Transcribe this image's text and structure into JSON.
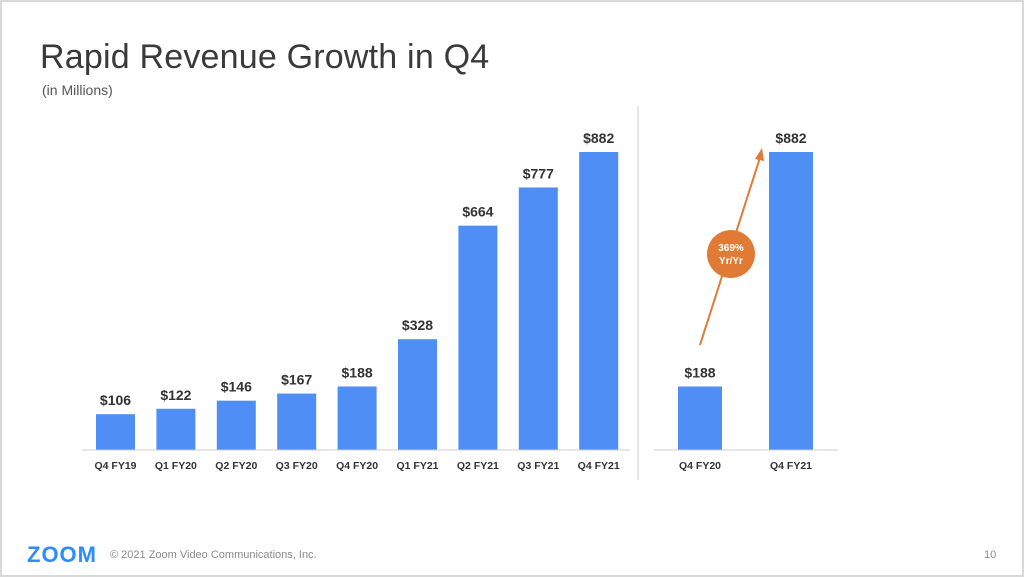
{
  "slide": {
    "title": "Rapid Revenue Growth in Q4",
    "subtitle": "(in Millions)",
    "logo": "ZOOM",
    "copyright": "© 2021 Zoom Video Communications, Inc.",
    "page_number": "10"
  },
  "colors": {
    "bar": "#4f8ff5",
    "arrow": "#e07a35",
    "badge": "#e07a35",
    "axis": "#cccccc",
    "logo": "#2d8cff"
  },
  "chart_data": [
    {
      "type": "bar",
      "categories": [
        "Q4 FY19",
        "Q1 FY20",
        "Q2 FY20",
        "Q3 FY20",
        "Q4 FY20",
        "Q1 FY21",
        "Q2 FY21",
        "Q3 FY21",
        "Q4 FY21"
      ],
      "values": [
        106,
        122,
        146,
        167,
        188,
        328,
        664,
        777,
        882
      ],
      "value_labels": [
        "$106",
        "$122",
        "$146",
        "$167",
        "$188",
        "$328",
        "$664",
        "$777",
        "$882"
      ],
      "ylim": [
        0,
        882
      ]
    },
    {
      "type": "bar",
      "categories": [
        "Q4 FY20",
        "Q4 FY21"
      ],
      "values": [
        188,
        882
      ],
      "value_labels": [
        "$188",
        "$882"
      ],
      "ylim": [
        0,
        882
      ],
      "annotation": {
        "line1": "369%",
        "line2": "Yr/Yr"
      }
    }
  ]
}
